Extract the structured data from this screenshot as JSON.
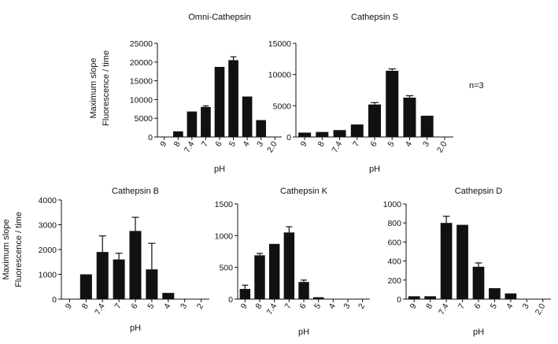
{
  "annotation": "n=3",
  "chart_data": [
    {
      "type": "bar",
      "title": "Omni-Cathepsin",
      "xlabel": "pH",
      "ylabel": [
        "Maximum slope",
        "Fluorescence / time"
      ],
      "categories": [
        "9",
        "8",
        "7.4",
        "7",
        "6",
        "5",
        "4",
        "3",
        "2.0"
      ],
      "values": [
        0,
        1500,
        6800,
        8000,
        18700,
        20500,
        10800,
        4500,
        0
      ],
      "errors": [
        0,
        0,
        0,
        300,
        0,
        900,
        0,
        0,
        0
      ],
      "ylim": [
        0,
        25000
      ],
      "yticks": [
        0,
        5000,
        10000,
        15000,
        20000,
        25000
      ],
      "grid": false
    },
    {
      "type": "bar",
      "title": "Cathepsin S",
      "xlabel": "pH",
      "ylabel": "",
      "categories": [
        "9",
        "8",
        "7.4",
        "7",
        "6",
        "5",
        "4",
        "3",
        "2.0"
      ],
      "values": [
        700,
        800,
        1100,
        2000,
        5200,
        10600,
        6300,
        3400,
        0
      ],
      "errors": [
        0,
        0,
        0,
        0,
        300,
        300,
        300,
        0,
        0
      ],
      "ylim": [
        0,
        15000
      ],
      "yticks": [
        0,
        5000,
        10000,
        15000
      ],
      "grid": false
    },
    {
      "type": "bar",
      "title": "Cathepsin B",
      "xlabel": "pH",
      "ylabel": [
        "Maximum slope",
        "Fluorescence / time"
      ],
      "categories": [
        "9",
        "8",
        "7.4",
        "7",
        "6",
        "5",
        "4",
        "3",
        "2"
      ],
      "values": [
        0,
        1000,
        1900,
        1600,
        2750,
        1200,
        250,
        0,
        0
      ],
      "errors": [
        0,
        0,
        650,
        250,
        550,
        1050,
        0,
        0,
        0
      ],
      "ylim": [
        0,
        4000
      ],
      "yticks": [
        0,
        1000,
        2000,
        3000,
        4000
      ],
      "grid": false
    },
    {
      "type": "bar",
      "title": "Cathepsin K",
      "xlabel": "pH",
      "ylabel": "",
      "categories": [
        "9",
        "8",
        "7.4",
        "7",
        "6",
        "5",
        "4",
        "3",
        "2"
      ],
      "values": [
        160,
        690,
        870,
        1050,
        270,
        30,
        0,
        0,
        0
      ],
      "errors": [
        60,
        30,
        0,
        90,
        30,
        0,
        0,
        0,
        0
      ],
      "ylim": [
        0,
        1500
      ],
      "yticks": [
        0,
        500,
        1000,
        1500
      ],
      "grid": false
    },
    {
      "type": "bar",
      "title": "Cathepsin D",
      "xlabel": "pH",
      "ylabel": "",
      "categories": [
        "9",
        "8",
        "7.4",
        "7",
        "6",
        "5",
        "4",
        "3",
        "2.0"
      ],
      "values": [
        30,
        30,
        800,
        780,
        340,
        115,
        60,
        0,
        0
      ],
      "errors": [
        0,
        0,
        70,
        0,
        40,
        0,
        0,
        0,
        0
      ],
      "ylim": [
        0,
        1000
      ],
      "yticks": [
        0,
        200,
        400,
        600,
        800,
        1000
      ],
      "grid": false
    }
  ]
}
